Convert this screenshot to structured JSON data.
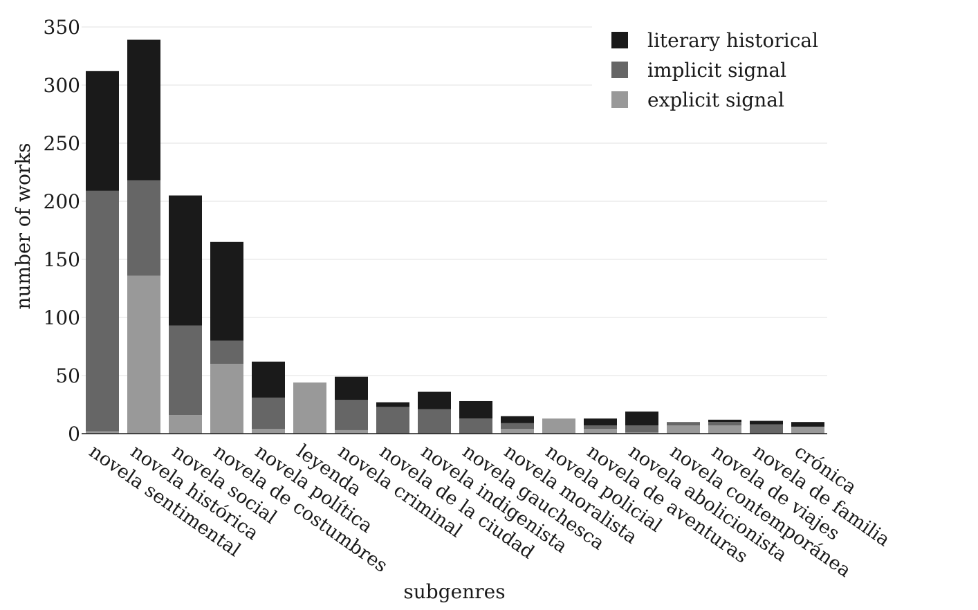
{
  "chart_data": {
    "type": "bar",
    "stacked": true,
    "xlabel": "subgenres",
    "ylabel": "number of works",
    "ylim": [
      0,
      350
    ],
    "yticks": [
      0,
      50,
      100,
      150,
      200,
      250,
      300,
      350
    ],
    "grid": "horizontal",
    "legend_position": "top-right",
    "categories": [
      "novela sentimental",
      "novela histórica",
      "novela social",
      "novela de costumbres",
      "novela política",
      "leyenda",
      "novela criminal",
      "novela de la ciudad",
      "novela indigenista",
      "novela gauchesca",
      "novela moralista",
      "novela policial",
      "novela de aventuras",
      "novela abolicionista",
      "novela contemporánea",
      "novela de viajes",
      "novela de familia",
      "crónica"
    ],
    "series": [
      {
        "name": "explicit signal",
        "color": "#999999",
        "values": [
          2,
          136,
          16,
          60,
          4,
          44,
          3,
          0,
          0,
          0,
          4,
          13,
          4,
          1,
          7,
          7,
          0,
          6
        ]
      },
      {
        "name": "implicit signal",
        "color": "#666666",
        "values": [
          207,
          82,
          77,
          20,
          27,
          0,
          26,
          23,
          21,
          13,
          5,
          0,
          3,
          6,
          3,
          3,
          8,
          0
        ]
      },
      {
        "name": "literary historical",
        "color": "#1a1a1a",
        "values": [
          103,
          121,
          112,
          85,
          31,
          0,
          20,
          4,
          15,
          15,
          6,
          0,
          6,
          12,
          0,
          2,
          3,
          4
        ]
      }
    ],
    "legend_order": [
      "literary historical",
      "implicit signal",
      "explicit signal"
    ]
  }
}
